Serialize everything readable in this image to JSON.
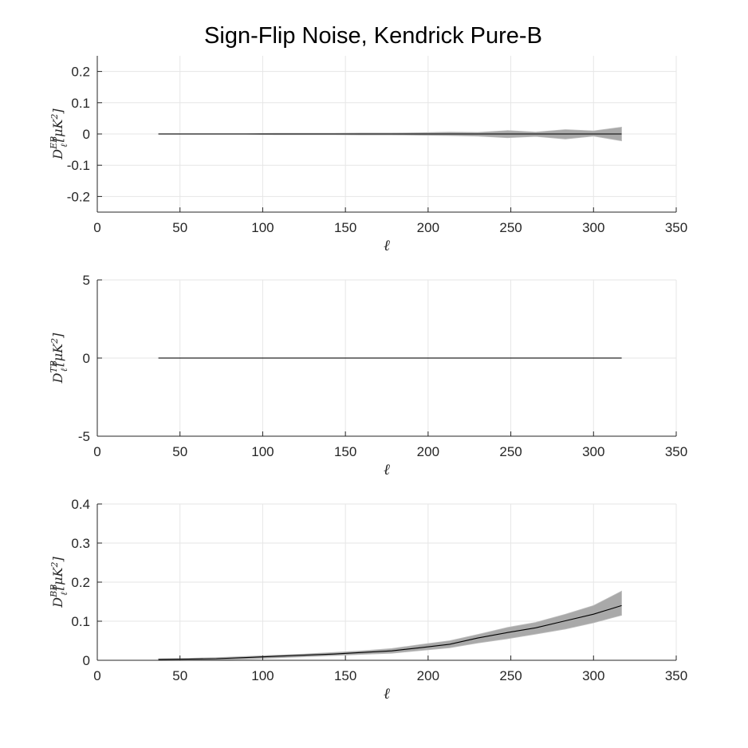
{
  "title": "Sign-Flip Noise, Kendrick Pure-B",
  "colors": {
    "band": "#a9a9a9",
    "mean": "#000000",
    "grid": "#e6e6e6",
    "axis": "#262626"
  },
  "chart_data": [
    {
      "type": "line",
      "id": "eb",
      "title": "",
      "xlabel": "ℓ",
      "ylabel": {
        "base": "D",
        "sup": "EB",
        "sub": "ℓ",
        "unit_open": "[μK",
        "unit_sup": "2",
        "unit_close": "]"
      },
      "xlim": [
        0,
        350
      ],
      "ylim": [
        -0.25,
        0.25
      ],
      "xticks": [
        0,
        50,
        100,
        150,
        200,
        250,
        300,
        350
      ],
      "xtick_labels": [
        "0",
        "50",
        "100",
        "150",
        "200",
        "250",
        "300",
        "350"
      ],
      "yticks": [
        0.2,
        0.1,
        0,
        -0.1,
        -0.2
      ],
      "ytick_labels": [
        "0.2",
        "0.1",
        "0",
        "-0.1",
        "-0.2"
      ],
      "grid": true,
      "x": [
        37,
        55,
        72,
        90,
        107,
        125,
        143,
        160,
        178,
        195,
        213,
        230,
        248,
        265,
        283,
        300,
        317
      ],
      "series": [
        {
          "name": "simulations-upper",
          "values": [
            0.001,
            0.001,
            0.001,
            0.001,
            0.002,
            0.002,
            0.002,
            0.003,
            0.003,
            0.004,
            0.006,
            0.005,
            0.011,
            0.006,
            0.014,
            0.01,
            0.022
          ]
        },
        {
          "name": "simulations-lower",
          "values": [
            -0.001,
            -0.001,
            -0.001,
            -0.001,
            -0.002,
            -0.002,
            -0.002,
            -0.003,
            -0.003,
            -0.004,
            -0.005,
            -0.007,
            -0.012,
            -0.008,
            -0.016,
            -0.007,
            -0.022
          ]
        },
        {
          "name": "mean",
          "values": [
            0,
            0,
            0,
            0,
            0,
            0,
            0,
            0,
            0,
            0,
            0,
            0,
            0,
            0,
            0,
            0,
            0
          ]
        }
      ]
    },
    {
      "type": "line",
      "id": "tb",
      "title": "",
      "xlabel": "ℓ",
      "ylabel": {
        "base": "D",
        "sup": "TB",
        "sub": "ℓ",
        "unit_open": "[μK",
        "unit_sup": "2",
        "unit_close": "]"
      },
      "xlim": [
        0,
        350
      ],
      "ylim": [
        -5,
        5
      ],
      "xticks": [
        0,
        50,
        100,
        150,
        200,
        250,
        300,
        350
      ],
      "xtick_labels": [
        "0",
        "50",
        "100",
        "150",
        "200",
        "250",
        "300",
        "350"
      ],
      "yticks": [
        5,
        0,
        -5
      ],
      "ytick_labels": [
        "5",
        "0",
        "-5"
      ],
      "grid": true,
      "x": [
        37,
        55,
        72,
        90,
        107,
        125,
        143,
        160,
        178,
        195,
        213,
        230,
        248,
        265,
        283,
        300,
        317
      ],
      "series": [
        {
          "name": "simulations-upper",
          "values": [
            0.01,
            0.01,
            0.01,
            0.01,
            0.01,
            0.01,
            0.01,
            0.01,
            0.01,
            0.01,
            0.01,
            0.01,
            0.01,
            0.01,
            0.01,
            0.01,
            0.01
          ]
        },
        {
          "name": "simulations-lower",
          "values": [
            -0.01,
            -0.01,
            -0.01,
            -0.01,
            -0.01,
            -0.01,
            -0.01,
            -0.01,
            -0.01,
            -0.01,
            -0.01,
            -0.01,
            -0.01,
            -0.01,
            -0.01,
            -0.01,
            -0.01
          ]
        },
        {
          "name": "mean",
          "values": [
            0,
            0,
            0,
            0,
            0,
            0,
            0,
            0,
            0,
            0,
            0,
            0,
            0,
            0,
            0,
            0,
            0
          ]
        }
      ]
    },
    {
      "type": "line",
      "id": "bb",
      "title": "",
      "xlabel": "ℓ",
      "ylabel": {
        "base": "D",
        "sup": "BB",
        "sub": "ℓ",
        "unit_open": "[μK",
        "unit_sup": "2",
        "unit_close": "]"
      },
      "xlim": [
        0,
        350
      ],
      "ylim": [
        0,
        0.4
      ],
      "xticks": [
        0,
        50,
        100,
        150,
        200,
        250,
        300,
        350
      ],
      "xtick_labels": [
        "0",
        "50",
        "100",
        "150",
        "200",
        "250",
        "300",
        "350"
      ],
      "yticks": [
        0.4,
        0.3,
        0.2,
        0.1,
        0
      ],
      "ytick_labels": [
        "0.4",
        "0.3",
        "0.2",
        "0.1",
        "0"
      ],
      "grid": true,
      "x": [
        37,
        55,
        72,
        90,
        107,
        125,
        143,
        160,
        178,
        195,
        213,
        230,
        248,
        265,
        283,
        300,
        317
      ],
      "series": [
        {
          "name": "simulations-upper",
          "values": [
            0.004,
            0.005,
            0.007,
            0.01,
            0.013,
            0.016,
            0.02,
            0.024,
            0.03,
            0.04,
            0.05,
            0.066,
            0.084,
            0.097,
            0.118,
            0.14,
            0.177
          ]
        },
        {
          "name": "simulations-lower",
          "values": [
            0.0,
            0.0,
            0.001,
            0.003,
            0.006,
            0.009,
            0.012,
            0.015,
            0.018,
            0.025,
            0.032,
            0.044,
            0.055,
            0.067,
            0.08,
            0.096,
            0.115
          ]
        },
        {
          "name": "mean",
          "values": [
            0.002,
            0.003,
            0.004,
            0.007,
            0.01,
            0.013,
            0.016,
            0.02,
            0.024,
            0.032,
            0.041,
            0.057,
            0.071,
            0.083,
            0.101,
            0.118,
            0.14
          ]
        }
      ]
    }
  ]
}
